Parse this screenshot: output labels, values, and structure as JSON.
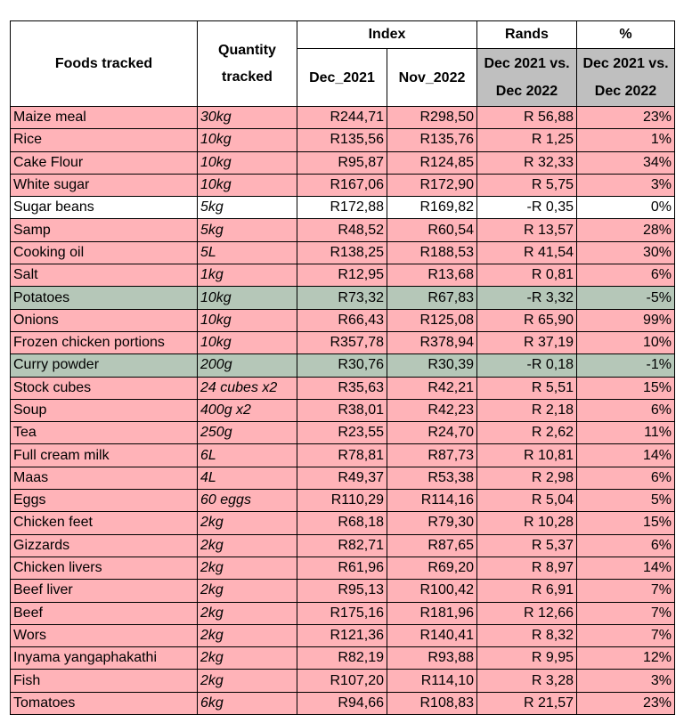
{
  "header": {
    "foods_tracked": "Foods tracked",
    "quantity_tracked": "Quantity tracked",
    "index": "Index",
    "rands": "Rands",
    "percent": "%",
    "dec_2021": "Dec_2021",
    "nov_2022": "Nov_2022",
    "rands_compare": "Dec 2021 vs. Dec 2022",
    "percent_compare": "Dec 2021 vs. Dec 2022"
  },
  "colors": {
    "increase": "#ffb3b8",
    "decrease": "#b5c7b8",
    "no_change": "#ffffff",
    "header_grey": "#bfbfbf"
  },
  "rows": [
    {
      "food": "Maize meal",
      "qty": "30kg",
      "dec2021": "R244,71",
      "nov2022": "R298,50",
      "rands": "R 56,88",
      "pct": "23%",
      "trend": "up"
    },
    {
      "food": "Rice",
      "qty": "10kg",
      "dec2021": "R135,56",
      "nov2022": "R135,76",
      "rands": "R 1,25",
      "pct": "1%",
      "trend": "up"
    },
    {
      "food": "Cake Flour",
      "qty": "10kg",
      "dec2021": "R95,87",
      "nov2022": "R124,85",
      "rands": "R 32,33",
      "pct": "34%",
      "trend": "up"
    },
    {
      "food": "White sugar",
      "qty": "10kg",
      "dec2021": "R167,06",
      "nov2022": "R172,90",
      "rands": "R 5,75",
      "pct": "3%",
      "trend": "up"
    },
    {
      "food": "Sugar beans",
      "qty": "5kg",
      "dec2021": "R172,88",
      "nov2022": "R169,82",
      "rands": "-R 0,35",
      "pct": "0%",
      "trend": "flat"
    },
    {
      "food": "Samp",
      "qty": "5kg",
      "dec2021": "R48,52",
      "nov2022": "R60,54",
      "rands": "R 13,57",
      "pct": "28%",
      "trend": "up"
    },
    {
      "food": "Cooking oil",
      "qty": "5L",
      "dec2021": "R138,25",
      "nov2022": "R188,53",
      "rands": "R 41,54",
      "pct": "30%",
      "trend": "up"
    },
    {
      "food": "Salt",
      "qty": "1kg",
      "dec2021": "R12,95",
      "nov2022": "R13,68",
      "rands": "R 0,81",
      "pct": "6%",
      "trend": "up"
    },
    {
      "food": "Potatoes",
      "qty": "10kg",
      "dec2021": "R73,32",
      "nov2022": "R67,83",
      "rands": "-R 3,32",
      "pct": "-5%",
      "trend": "down"
    },
    {
      "food": "Onions",
      "qty": "10kg",
      "dec2021": "R66,43",
      "nov2022": "R125,08",
      "rands": "R 65,90",
      "pct": "99%",
      "trend": "up"
    },
    {
      "food": "Frozen chicken portions",
      "qty": "10kg",
      "dec2021": "R357,78",
      "nov2022": "R378,94",
      "rands": "R 37,19",
      "pct": "10%",
      "trend": "up"
    },
    {
      "food": "Curry powder",
      "qty": "200g",
      "dec2021": "R30,76",
      "nov2022": "R30,39",
      "rands": "-R 0,18",
      "pct": "-1%",
      "trend": "down"
    },
    {
      "food": "Stock cubes",
      "qty": "24 cubes x2",
      "dec2021": "R35,63",
      "nov2022": "R42,21",
      "rands": "R 5,51",
      "pct": "15%",
      "trend": "up"
    },
    {
      "food": "Soup",
      "qty": "400g x2",
      "dec2021": "R38,01",
      "nov2022": "R42,23",
      "rands": "R 2,18",
      "pct": "6%",
      "trend": "up"
    },
    {
      "food": "Tea",
      "qty": "250g",
      "dec2021": "R23,55",
      "nov2022": "R24,70",
      "rands": "R 2,62",
      "pct": "11%",
      "trend": "up"
    },
    {
      "food": "Full cream milk",
      "qty": "6L",
      "dec2021": "R78,81",
      "nov2022": "R87,73",
      "rands": "R 10,81",
      "pct": "14%",
      "trend": "up"
    },
    {
      "food": "Maas",
      "qty": "4L",
      "dec2021": "R49,37",
      "nov2022": "R53,38",
      "rands": "R 2,98",
      "pct": "6%",
      "trend": "up"
    },
    {
      "food": "Eggs",
      "qty": "60 eggs",
      "dec2021": "R110,29",
      "nov2022": "R114,16",
      "rands": "R 5,04",
      "pct": "5%",
      "trend": "up"
    },
    {
      "food": "Chicken feet",
      "qty": "2kg",
      "dec2021": "R68,18",
      "nov2022": "R79,30",
      "rands": "R 10,28",
      "pct": "15%",
      "trend": "up"
    },
    {
      "food": "Gizzards",
      "qty": "2kg",
      "dec2021": "R82,71",
      "nov2022": "R87,65",
      "rands": "R 5,37",
      "pct": "6%",
      "trend": "up"
    },
    {
      "food": "Chicken livers",
      "qty": "2kg",
      "dec2021": "R61,96",
      "nov2022": "R69,20",
      "rands": "R 8,97",
      "pct": "14%",
      "trend": "up"
    },
    {
      "food": "Beef liver",
      "qty": "2kg",
      "dec2021": "R95,13",
      "nov2022": "R100,42",
      "rands": "R 6,91",
      "pct": "7%",
      "trend": "up"
    },
    {
      "food": "Beef",
      "qty": "2kg",
      "dec2021": "R175,16",
      "nov2022": "R181,96",
      "rands": "R 12,66",
      "pct": "7%",
      "trend": "up"
    },
    {
      "food": "Wors",
      "qty": "2kg",
      "dec2021": "R121,36",
      "nov2022": "R140,41",
      "rands": "R 8,32",
      "pct": "7%",
      "trend": "up"
    },
    {
      "food": "Inyama yangaphakathi",
      "qty": "2kg",
      "dec2021": "R82,19",
      "nov2022": "R93,88",
      "rands": "R 9,95",
      "pct": "12%",
      "trend": "up"
    },
    {
      "food": "Fish",
      "qty": "2kg",
      "dec2021": "R107,20",
      "nov2022": "R114,10",
      "rands": "R 3,28",
      "pct": "3%",
      "trend": "up"
    },
    {
      "food": "Tomatoes",
      "qty": "6kg",
      "dec2021": "R94,66",
      "nov2022": "R108,83",
      "rands": "R 21,57",
      "pct": "23%",
      "trend": "up"
    }
  ]
}
